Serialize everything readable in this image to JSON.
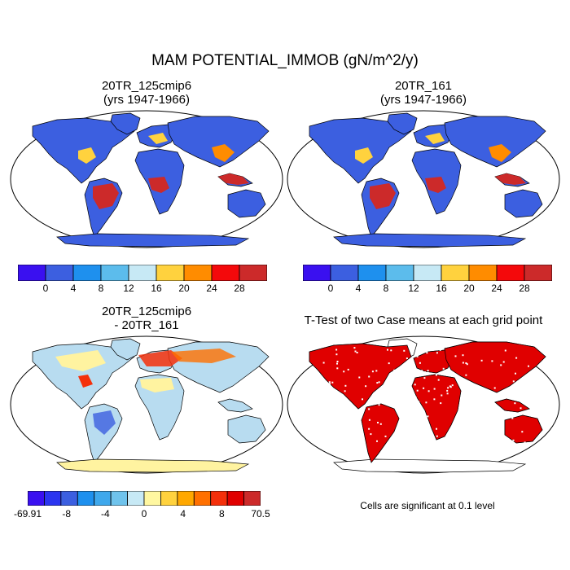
{
  "title": "MAM POTENTIAL_IMMOB (gN/m^2/y)",
  "panels": [
    {
      "title_line1": "20TR_125cmip6",
      "title_line2": "(yrs 1947-1966)"
    },
    {
      "title_line1": "20TR_161",
      "title_line2": "(yrs 1947-1966)"
    },
    {
      "title_line1": "20TR_125cmip6",
      "title_line2": "- 20TR_161"
    },
    {
      "title_line1": "T-Test of two Case means at each grid point",
      "title_line2": ""
    }
  ],
  "colorbar_abs": {
    "colors": [
      "#3a10f0",
      "#3c5fe0",
      "#1e90ee",
      "#5cbcec",
      "#c7e9f5",
      "#ffd23e",
      "#ff8c00",
      "#f4090b",
      "#cc2a2a"
    ],
    "labels": [
      "0",
      "4",
      "8",
      "12",
      "16",
      "20",
      "24",
      "28"
    ]
  },
  "colorbar_diff": {
    "colors": [
      "#3a10f0",
      "#2b35f0",
      "#3c5fe0",
      "#1e90ee",
      "#3fa8ec",
      "#6fc3ec",
      "#c7e9f5",
      "#fff7a0",
      "#ffd23e",
      "#ffa800",
      "#ff7000",
      "#f4300b",
      "#e00000",
      "#cc2a2a"
    ],
    "labels": [
      "-69.91",
      "-8",
      "-4",
      "0",
      "4",
      "8",
      "70.5"
    ]
  },
  "significance_note": "Cells are significant at 0.1 level",
  "colors": {
    "ocean": "#ffffff",
    "land_base_abs": "#3c5fe0",
    "tropical_abs": "#cc2a2a",
    "diff_base": "#b8dcf0",
    "diff_pos": "#fff3a0",
    "signif": "#e00000",
    "antarctica_abs": "#3c5fe0",
    "antarctica_diff": "#fff3a0"
  }
}
